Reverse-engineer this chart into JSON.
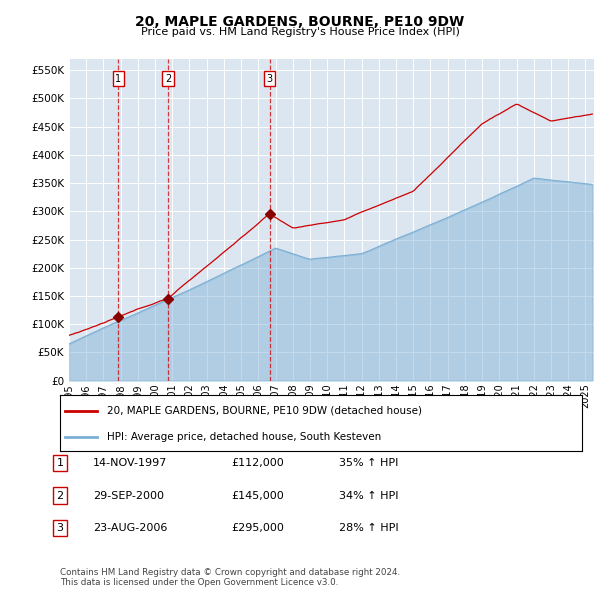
{
  "title": "20, MAPLE GARDENS, BOURNE, PE10 9DW",
  "subtitle": "Price paid vs. HM Land Registry's House Price Index (HPI)",
  "xlim_start": 1995.0,
  "xlim_end": 2025.5,
  "ylim_min": 0,
  "ylim_max": 570000,
  "yticks": [
    0,
    50000,
    100000,
    150000,
    200000,
    250000,
    300000,
    350000,
    400000,
    450000,
    500000,
    550000
  ],
  "ytick_labels": [
    "£0",
    "£50K",
    "£100K",
    "£150K",
    "£200K",
    "£250K",
    "£300K",
    "£350K",
    "£400K",
    "£450K",
    "£500K",
    "£550K"
  ],
  "xtick_years": [
    1995,
    1996,
    1997,
    1998,
    1999,
    2000,
    2001,
    2002,
    2003,
    2004,
    2005,
    2006,
    2007,
    2008,
    2009,
    2010,
    2011,
    2012,
    2013,
    2014,
    2015,
    2016,
    2017,
    2018,
    2019,
    2020,
    2021,
    2022,
    2023,
    2024,
    2025
  ],
  "sale_dates": [
    1997.87,
    2000.75,
    2006.65
  ],
  "sale_prices": [
    112000,
    145000,
    295000
  ],
  "sale_labels": [
    "1",
    "2",
    "3"
  ],
  "legend_label_red": "20, MAPLE GARDENS, BOURNE, PE10 9DW (detached house)",
  "legend_label_blue": "HPI: Average price, detached house, South Kesteven",
  "table_rows": [
    [
      "1",
      "14-NOV-1997",
      "£112,000",
      "35% ↑ HPI"
    ],
    [
      "2",
      "29-SEP-2000",
      "£145,000",
      "34% ↑ HPI"
    ],
    [
      "3",
      "23-AUG-2006",
      "£295,000",
      "28% ↑ HPI"
    ]
  ],
  "footnote": "Contains HM Land Registry data © Crown copyright and database right 2024.\nThis data is licensed under the Open Government Licence v3.0.",
  "bg_color": "#dce6f1",
  "red_color": "#cc0000",
  "blue_color": "#7bafd4",
  "grid_color": "#ffffff",
  "sale_marker_color": "#880000"
}
